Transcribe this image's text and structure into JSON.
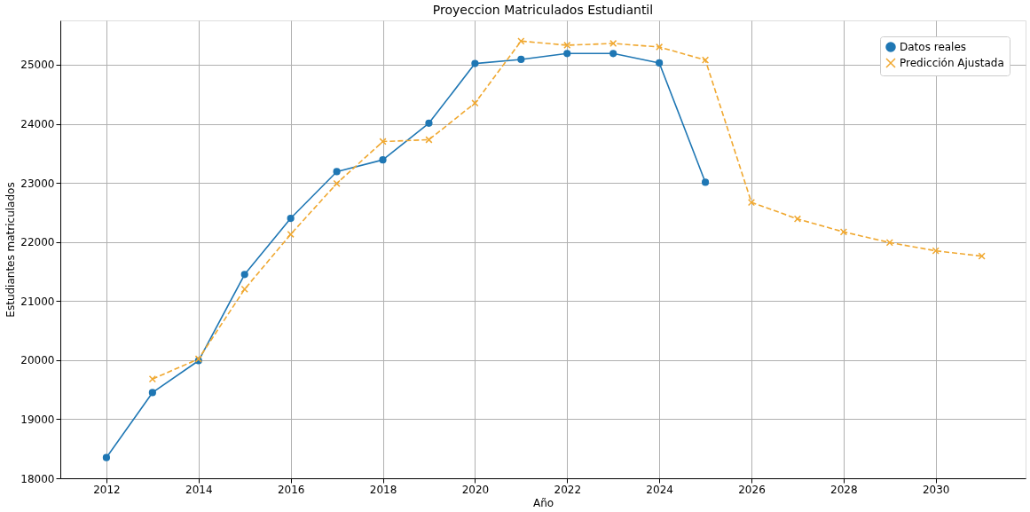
{
  "chart_data": {
    "type": "line",
    "title": "Proyeccion Matriculados Estudiantil",
    "xlabel": "Año",
    "ylabel": "Estudiantes matriculados",
    "series": [
      {
        "name": "Datos reales",
        "color": "#1f77b4",
        "marker": "circle",
        "line_style": "solid",
        "x": [
          2012,
          2013,
          2014,
          2015,
          2016,
          2017,
          2018,
          2019,
          2020,
          2021,
          2022,
          2023,
          2024,
          2025
        ],
        "values": [
          18350,
          19450,
          19990,
          21450,
          22400,
          23190,
          23390,
          24010,
          25020,
          25090,
          25190,
          25190,
          25030,
          23010
        ]
      },
      {
        "name": "Predicción Ajustada",
        "color": "#f0a830",
        "marker": "cross",
        "line_style": "dashed",
        "x": [
          2013,
          2014,
          2015,
          2016,
          2017,
          2018,
          2019,
          2020,
          2021,
          2022,
          2023,
          2024,
          2025,
          2026,
          2027,
          2028,
          2029,
          2030,
          2031
        ],
        "values": [
          19680,
          20020,
          21200,
          22130,
          22990,
          23700,
          23730,
          24350,
          25400,
          25330,
          25360,
          25300,
          25080,
          22670,
          22390,
          22170,
          21990,
          21850,
          21760
        ]
      }
    ],
    "xlim": [
      2011,
      2031.95
    ],
    "xticks": [
      2012,
      2014,
      2016,
      2018,
      2020,
      2022,
      2024,
      2026,
      2028,
      2030
    ],
    "ylim": [
      18000,
      25750
    ],
    "yticks": [
      18000,
      19000,
      20000,
      21000,
      22000,
      23000,
      24000,
      25000
    ],
    "grid": true,
    "legend": "top right"
  }
}
